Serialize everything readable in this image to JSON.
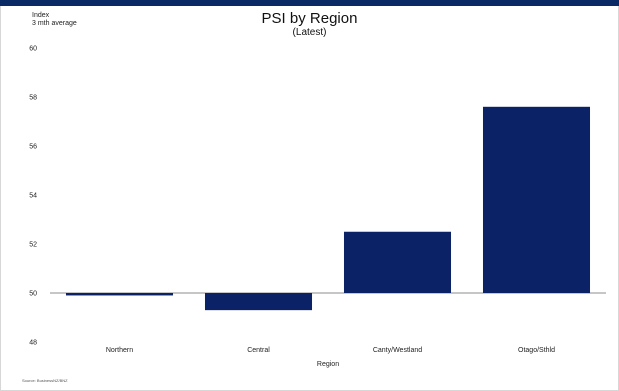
{
  "chart_data": {
    "type": "bar",
    "title": "PSI by Region",
    "subtitle": "(Latest)",
    "xlabel": "Region",
    "ylabel": "Index",
    "ylabel_line2": "3 mth average",
    "categories": [
      "Northern",
      "Central",
      "Canty/Westland",
      "Otago/Sthld"
    ],
    "values": [
      49.9,
      49.3,
      52.5,
      57.6
    ],
    "ylim": [
      48,
      60
    ],
    "yticks": [
      48,
      50,
      52,
      54,
      56,
      58,
      60
    ],
    "baseline": 50,
    "grid": false,
    "legend": "none",
    "colors": {
      "bar": "#0b2266",
      "axis": "#666666",
      "top_band": "#0a2a66"
    }
  },
  "source": "Source: BusinessNZ/BNZ"
}
